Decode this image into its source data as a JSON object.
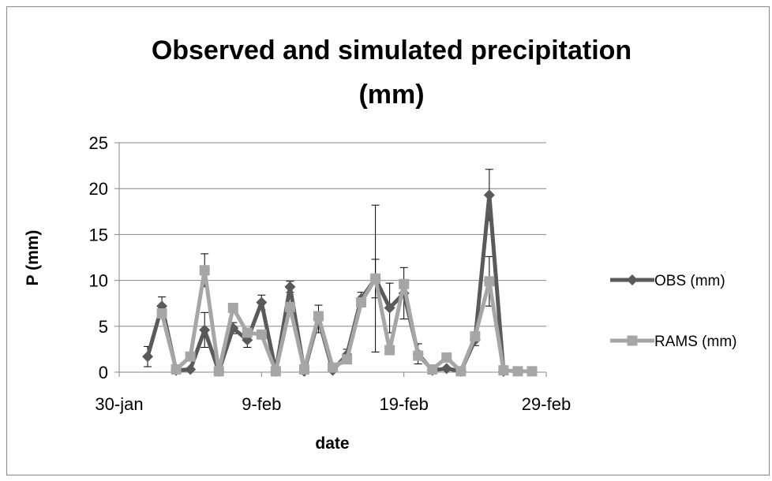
{
  "chart_data": {
    "type": "line",
    "title_lines": [
      "Observed and simulated precipitation",
      "(mm)"
    ],
    "xlabel": "date",
    "ylabel": "P (mm)",
    "ylim": [
      0,
      25
    ],
    "yticks": [
      0,
      5,
      10,
      15,
      20,
      25
    ],
    "xlim": [
      "2012-01-30",
      "2012-02-29"
    ],
    "xticks": [
      {
        "date": "2012-01-30",
        "label": "30-jan"
      },
      {
        "date": "2012-02-09",
        "label": "9-feb"
      },
      {
        "date": "2012-02-19",
        "label": "19-feb"
      },
      {
        "date": "2012-02-29",
        "label": "29-feb"
      }
    ],
    "grid": "horizontal",
    "legend": "right",
    "x": [
      "2012-02-01",
      "2012-02-02",
      "2012-02-03",
      "2012-02-04",
      "2012-02-05",
      "2012-02-06",
      "2012-02-07",
      "2012-02-08",
      "2012-02-09",
      "2012-02-10",
      "2012-02-11",
      "2012-02-12",
      "2012-02-13",
      "2012-02-14",
      "2012-02-15",
      "2012-02-16",
      "2012-02-17",
      "2012-02-18",
      "2012-02-19",
      "2012-02-20",
      "2012-02-21",
      "2012-02-22",
      "2012-02-23",
      "2012-02-24",
      "2012-02-25",
      "2012-02-26",
      "2012-02-27",
      "2012-02-28"
    ],
    "series": [
      {
        "name": "OBS (mm)",
        "color": "#5a5a5a",
        "marker": "diamond",
        "values": [
          1.7,
          7.2,
          0.2,
          0.3,
          4.6,
          0.1,
          4.8,
          3.5,
          7.6,
          0.1,
          9.3,
          0.1,
          5.8,
          0.2,
          1.9,
          8.0,
          10.2,
          7.0,
          8.6,
          2.0,
          0.2,
          0.4,
          0.1,
          3.5,
          19.3,
          0.1,
          null,
          null
        ],
        "error": [
          1.1,
          1.0,
          null,
          null,
          1.9,
          null,
          0.6,
          0.8,
          0.8,
          null,
          0.6,
          null,
          1.5,
          null,
          0.6,
          0.7,
          8.0,
          2.7,
          2.8,
          1.1,
          null,
          null,
          null,
          0.6,
          2.8,
          null,
          null,
          null
        ]
      },
      {
        "name": "RAMS (mm)",
        "color": "#a6a6a6",
        "marker": "square",
        "values": [
          null,
          6.4,
          0.3,
          1.7,
          11.1,
          0.1,
          7.0,
          4.3,
          4.1,
          0.1,
          7.1,
          0.3,
          6.1,
          0.5,
          1.4,
          7.6,
          10.2,
          2.4,
          9.6,
          1.8,
          0.3,
          1.6,
          0.1,
          3.9,
          9.9,
          0.2,
          0.1,
          0.1
        ],
        "error": [
          null,
          null,
          null,
          null,
          1.8,
          null,
          null,
          null,
          null,
          null,
          null,
          null,
          null,
          null,
          null,
          null,
          2.1,
          null,
          null,
          null,
          null,
          null,
          null,
          null,
          2.7,
          null,
          null,
          null
        ]
      }
    ]
  }
}
